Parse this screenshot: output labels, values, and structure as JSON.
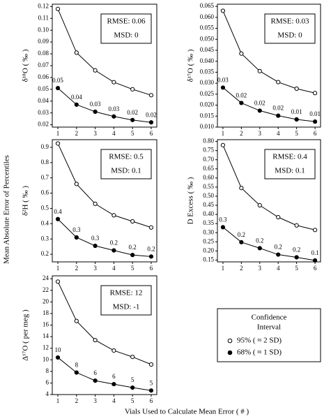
{
  "y_label": "Mean Absolute Error of Percentiles",
  "x_label": "Vials Used to Calculate Mean Error ( # )",
  "legend": {
    "title": "Confidence Interval",
    "entries": [
      "95% ( ≈ 2 SD)",
      "68% ( ≈ 1 SD)"
    ]
  },
  "chart_data": [
    {
      "type": "line",
      "y_axis_label": "δ¹⁸O ( ‰ )",
      "annotations": [
        "RMSE: 0.06",
        "MSD: 0"
      ],
      "x": [
        1,
        2,
        3,
        4,
        5,
        6
      ],
      "xlim": [
        0.7,
        6.3
      ],
      "xticks": [
        1,
        2,
        3,
        4,
        5,
        6
      ],
      "ylim": [
        0.018,
        0.122
      ],
      "yticks": [
        0.02,
        0.03,
        0.04,
        0.05,
        0.06,
        0.07,
        0.08,
        0.09,
        {
          "value": 0.1,
          "label": "0.10"
        },
        0.11,
        0.12
      ],
      "series": [
        {
          "marker": "open",
          "color": "#000000",
          "values": [
            0.118,
            0.081,
            0.066,
            0.056,
            0.05,
            0.045
          ]
        },
        {
          "marker": "filled",
          "color": "#000000",
          "values": [
            0.051,
            0.037,
            0.031,
            0.027,
            0.024,
            0.022
          ],
          "value_labels": [
            "0.05",
            "0.04",
            "0.03",
            "0.03",
            "0.02",
            "0.02"
          ]
        }
      ]
    },
    {
      "type": "line",
      "y_axis_label": "δ¹⁷O ( ‰ )",
      "annotations": [
        "RMSE: 0.03",
        "MSD: 0"
      ],
      "x": [
        1,
        2,
        3,
        4,
        5,
        6
      ],
      "xlim": [
        0.7,
        6.3
      ],
      "xticks": [
        1,
        2,
        3,
        4,
        5,
        6
      ],
      "ylim": [
        0.01,
        0.066
      ],
      "yticks": [
        {
          "value": 0.01,
          "label": "0.010"
        },
        0.015,
        {
          "value": 0.02,
          "label": "0.020"
        },
        0.025,
        {
          "value": 0.03,
          "label": "0.030"
        },
        0.035,
        {
          "value": 0.04,
          "label": "0.040"
        },
        0.045,
        {
          "value": 0.05,
          "label": "0.050"
        },
        0.055,
        {
          "value": 0.06,
          "label": "0.060"
        },
        0.065
      ],
      "series": [
        {
          "marker": "open",
          "color": "#000000",
          "values": [
            0.063,
            0.0435,
            0.0355,
            0.0305,
            0.0275,
            0.0255
          ]
        },
        {
          "marker": "filled",
          "color": "#000000",
          "values": [
            0.028,
            0.021,
            0.0175,
            0.0152,
            0.0135,
            0.0125
          ],
          "value_labels": [
            "0.03",
            "0.02",
            "0.02",
            "0.02",
            "0.01",
            "0.01"
          ]
        }
      ]
    },
    {
      "type": "line",
      "y_axis_label": "δ²H ( ‰ )",
      "annotations": [
        "RMSE: 0.5",
        "MSD: 0.1"
      ],
      "x": [
        1,
        2,
        3,
        4,
        5,
        6
      ],
      "xlim": [
        0.7,
        6.3
      ],
      "xticks": [
        1,
        2,
        3,
        4,
        5,
        6
      ],
      "ylim": [
        0.15,
        0.95
      ],
      "yticks": [
        0.2,
        0.3,
        0.4,
        0.5,
        0.6,
        0.7,
        0.8,
        0.9
      ],
      "series": [
        {
          "marker": "open",
          "color": "#000000",
          "values": [
            0.925,
            0.66,
            0.53,
            0.455,
            0.415,
            0.375
          ]
        },
        {
          "marker": "filled",
          "color": "#000000",
          "values": [
            0.43,
            0.31,
            0.255,
            0.225,
            0.195,
            0.185
          ],
          "value_labels": [
            "0.4",
            "0.3",
            "0.3",
            "0.2",
            "0.2",
            "0.2"
          ]
        }
      ]
    },
    {
      "type": "line",
      "y_axis_label": "D Excess ( ‰ )",
      "annotations": [
        "RMSE: 0.4",
        "MSD: 0.1"
      ],
      "x": [
        1,
        2,
        3,
        4,
        5,
        6
      ],
      "xlim": [
        0.7,
        6.3
      ],
      "xticks": [
        1,
        2,
        3,
        4,
        5,
        6
      ],
      "ylim": [
        0.14,
        0.81
      ],
      "yticks": [
        0.15,
        {
          "value": 0.2,
          "label": "0.20"
        },
        0.25,
        {
          "value": 0.3,
          "label": "0.30"
        },
        0.35,
        {
          "value": 0.4,
          "label": "0.40"
        },
        0.45,
        {
          "value": 0.5,
          "label": "0.50"
        },
        0.55,
        {
          "value": 0.6,
          "label": "0.60"
        },
        0.65,
        {
          "value": 0.7,
          "label": "0.70"
        },
        0.75,
        {
          "value": 0.8,
          "label": "0.80"
        }
      ],
      "series": [
        {
          "marker": "open",
          "color": "#000000",
          "values": [
            0.78,
            0.545,
            0.45,
            0.385,
            0.34,
            0.315
          ]
        },
        {
          "marker": "filled",
          "color": "#000000",
          "values": [
            0.33,
            0.248,
            0.215,
            0.18,
            0.165,
            0.148
          ],
          "value_labels": [
            "0.3",
            "0.2",
            "0.2",
            "0.2",
            "0.2",
            "0.1"
          ]
        }
      ]
    },
    {
      "type": "line",
      "y_axis_label": "Δ¹⁷O ( per meg )",
      "annotations": [
        "RMSE: 12",
        "MSD: -1"
      ],
      "x": [
        1,
        2,
        3,
        4,
        5,
        6
      ],
      "xlim": [
        0.7,
        6.3
      ],
      "xticks": [
        1,
        2,
        3,
        4,
        5,
        6
      ],
      "ylim": [
        4,
        24.5
      ],
      "yticks": [
        4,
        6,
        8,
        10,
        12,
        14,
        16,
        18,
        20,
        22,
        24
      ],
      "series": [
        {
          "marker": "open",
          "color": "#000000",
          "values": [
            23.5,
            16.7,
            13.4,
            11.6,
            10.5,
            9.2
          ]
        },
        {
          "marker": "filled",
          "color": "#000000",
          "values": [
            10.4,
            7.8,
            6.4,
            5.8,
            5.2,
            4.7
          ],
          "value_labels": [
            "10",
            "8",
            "6",
            "6",
            "5",
            "5"
          ]
        }
      ]
    }
  ]
}
